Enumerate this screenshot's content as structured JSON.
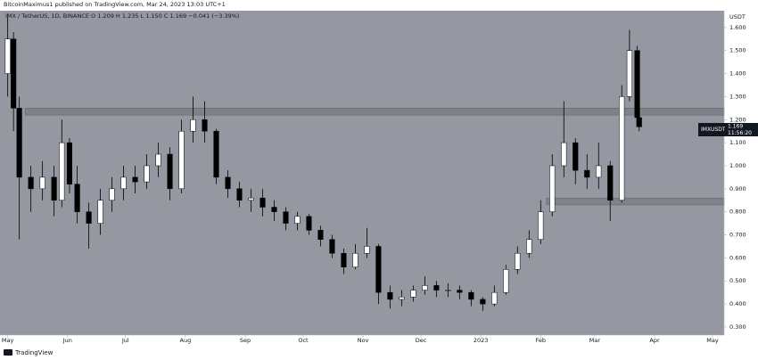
{
  "chart_data": {
    "type": "candlestick",
    "header": "BitcoinMaximus1 published on TradingView.com, Mar 24, 2023 13:03 UTC+1",
    "legend_line": "IMX / TetherUS, 1D, BINANCE  O 1.209  H 1.235  L 1.150  C 1.169  −0.041 (−3.39%)",
    "y_axis_label": "USDT",
    "symbol_label": "IMXUSDT",
    "last_price_label": "1.169",
    "countdown": "11:56:20",
    "footer": "TradingView",
    "up_color": "#ffffff",
    "down_color": "#000000",
    "wick_color": "#000000",
    "background": "#9598a1",
    "x": [
      0,
      3,
      6,
      12,
      18,
      24,
      28,
      32,
      36,
      42,
      48,
      54,
      60,
      66,
      72,
      78,
      84,
      90,
      96,
      102,
      108,
      114,
      120,
      126,
      132,
      138,
      144,
      150,
      156,
      162,
      168,
      174,
      180,
      186,
      192,
      198,
      204,
      210,
      216,
      222,
      228,
      234,
      240,
      246,
      252,
      258,
      264,
      270,
      276,
      282,
      288,
      294,
      300,
      306,
      312,
      318,
      322,
      326,
      327
    ],
    "open": [
      1.4,
      1.55,
      1.25,
      0.95,
      0.9,
      0.95,
      0.85,
      1.1,
      0.92,
      0.8,
      0.75,
      0.85,
      0.9,
      0.95,
      0.93,
      1.0,
      1.05,
      0.9,
      1.15,
      1.2,
      1.15,
      0.95,
      0.9,
      0.85,
      0.86,
      0.82,
      0.8,
      0.75,
      0.78,
      0.72,
      0.68,
      0.62,
      0.56,
      0.62,
      0.65,
      0.45,
      0.42,
      0.43,
      0.46,
      0.48,
      0.46,
      0.46,
      0.45,
      0.42,
      0.4,
      0.45,
      0.55,
      0.62,
      0.68,
      0.8,
      1.0,
      1.1,
      0.98,
      0.95,
      1.0,
      0.85,
      1.3,
      1.5,
      1.209
    ],
    "high": [
      1.66,
      1.58,
      1.3,
      1.0,
      1.02,
      1.0,
      1.2,
      1.12,
      1.0,
      0.84,
      0.9,
      0.95,
      1.0,
      1.0,
      1.05,
      1.1,
      1.08,
      1.2,
      1.3,
      1.28,
      1.16,
      0.98,
      0.93,
      0.9,
      0.9,
      0.85,
      0.82,
      0.8,
      0.79,
      0.74,
      0.7,
      0.64,
      0.66,
      0.73,
      0.66,
      0.48,
      0.46,
      0.48,
      0.52,
      0.5,
      0.49,
      0.48,
      0.46,
      0.43,
      0.48,
      0.57,
      0.65,
      0.72,
      0.85,
      1.05,
      1.28,
      1.12,
      1.05,
      1.1,
      1.02,
      1.35,
      1.59,
      1.52,
      1.235
    ],
    "low": [
      1.3,
      1.15,
      0.68,
      0.8,
      0.85,
      0.78,
      0.82,
      0.88,
      0.75,
      0.64,
      0.7,
      0.8,
      0.85,
      0.88,
      0.9,
      0.95,
      0.85,
      0.88,
      1.1,
      1.1,
      0.92,
      0.86,
      0.82,
      0.8,
      0.78,
      0.76,
      0.72,
      0.72,
      0.7,
      0.65,
      0.6,
      0.53,
      0.55,
      0.6,
      0.4,
      0.38,
      0.39,
      0.41,
      0.44,
      0.43,
      0.43,
      0.42,
      0.39,
      0.37,
      0.39,
      0.44,
      0.53,
      0.6,
      0.66,
      0.78,
      0.95,
      0.92,
      0.9,
      0.9,
      0.76,
      0.84,
      1.28,
      1.2,
      1.15
    ],
    "close": [
      1.55,
      1.25,
      0.95,
      0.9,
      0.95,
      0.85,
      1.1,
      0.92,
      0.8,
      0.75,
      0.85,
      0.9,
      0.95,
      0.93,
      1.0,
      1.05,
      0.9,
      1.15,
      1.2,
      1.15,
      0.95,
      0.9,
      0.85,
      0.86,
      0.82,
      0.8,
      0.75,
      0.78,
      0.72,
      0.68,
      0.62,
      0.56,
      0.62,
      0.65,
      0.45,
      0.42,
      0.43,
      0.46,
      0.48,
      0.46,
      0.46,
      0.45,
      0.42,
      0.4,
      0.45,
      0.55,
      0.62,
      0.68,
      0.8,
      1.0,
      1.1,
      0.98,
      0.95,
      1.0,
      0.85,
      1.3,
      1.5,
      1.209,
      1.169
    ],
    "zones": [
      {
        "from": 1.22,
        "to": 1.25,
        "x_start": 9
      },
      {
        "from": 0.83,
        "to": 0.86,
        "x_start": 279
      }
    ],
    "zone_color": "#6f7179",
    "xlim": [
      -4,
      371
    ],
    "ylim": [
      0.265,
      1.673
    ],
    "xticks": [
      {
        "value": 0,
        "label": "May"
      },
      {
        "value": 31,
        "label": "Jun"
      },
      {
        "value": 61,
        "label": "Jul"
      },
      {
        "value": 92,
        "label": "Aug"
      },
      {
        "value": 123,
        "label": "Sep"
      },
      {
        "value": 153,
        "label": "Oct"
      },
      {
        "value": 184,
        "label": "Nov"
      },
      {
        "value": 214,
        "label": "Dec"
      },
      {
        "value": 245,
        "label": "2023"
      },
      {
        "value": 276,
        "label": "Feb"
      },
      {
        "value": 304,
        "label": "Mar"
      },
      {
        "value": 335,
        "label": "Apr"
      },
      {
        "value": 365,
        "label": "May"
      }
    ],
    "yticks": [
      {
        "value": 0.3,
        "label": "0.300"
      },
      {
        "value": 0.4,
        "label": "0.400"
      },
      {
        "value": 0.5,
        "label": "0.500"
      },
      {
        "value": 0.6,
        "label": "0.600"
      },
      {
        "value": 0.7,
        "label": "0.700"
      },
      {
        "value": 0.8,
        "label": "0.800"
      },
      {
        "value": 0.9,
        "label": "0.900"
      },
      {
        "value": 1.0,
        "label": "1.000"
      },
      {
        "value": 1.1,
        "label": "1.100"
      },
      {
        "value": 1.2,
        "label": "1.200"
      },
      {
        "value": 1.3,
        "label": "1.300"
      },
      {
        "value": 1.4,
        "label": "1.400"
      },
      {
        "value": 1.5,
        "label": "1.500"
      },
      {
        "value": 1.6,
        "label": "1.600"
      }
    ]
  }
}
